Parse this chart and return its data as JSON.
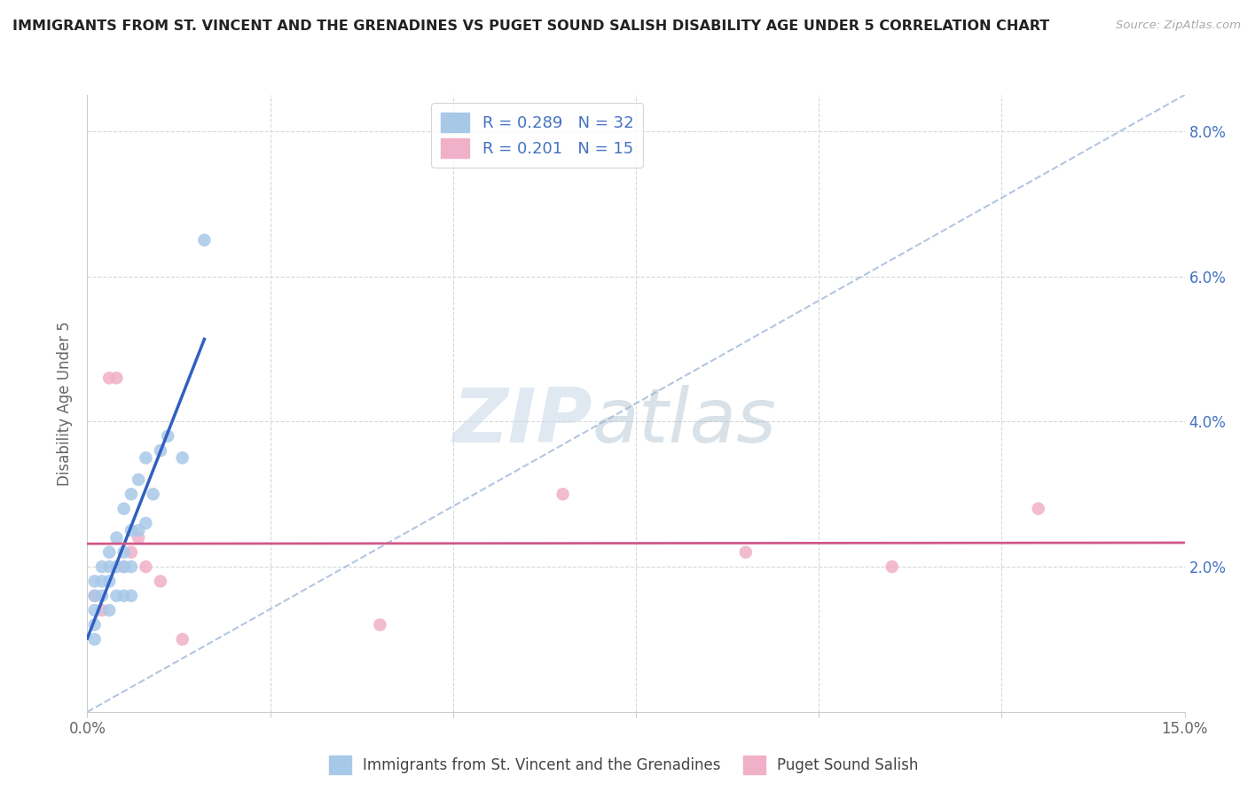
{
  "title": "IMMIGRANTS FROM ST. VINCENT AND THE GRENADINES VS PUGET SOUND SALISH DISABILITY AGE UNDER 5 CORRELATION CHART",
  "source": "Source: ZipAtlas.com",
  "ylabel": "Disability Age Under 5",
  "xlim": [
    0.0,
    0.15
  ],
  "ylim": [
    0.0,
    0.085
  ],
  "yticks": [
    0.0,
    0.02,
    0.04,
    0.06,
    0.08
  ],
  "yticklabels_right": [
    "",
    "2.0%",
    "4.0%",
    "6.0%",
    "8.0%"
  ],
  "blue_R": 0.289,
  "blue_N": 32,
  "pink_R": 0.201,
  "pink_N": 15,
  "blue_color": "#a8c8e8",
  "pink_color": "#f0b0c8",
  "blue_line_color": "#3060c0",
  "pink_line_color": "#d05888",
  "legend_blue_label": "Immigrants from St. Vincent and the Grenadines",
  "legend_pink_label": "Puget Sound Salish",
  "blue_scatter_x": [
    0.001,
    0.001,
    0.001,
    0.001,
    0.002,
    0.002,
    0.002,
    0.003,
    0.003,
    0.003,
    0.003,
    0.004,
    0.004,
    0.004,
    0.005,
    0.005,
    0.005,
    0.005,
    0.006,
    0.006,
    0.006,
    0.006,
    0.007,
    0.007,
    0.008,
    0.008,
    0.009,
    0.01,
    0.011,
    0.013,
    0.016,
    0.001
  ],
  "blue_scatter_y": [
    0.018,
    0.016,
    0.014,
    0.01,
    0.02,
    0.018,
    0.016,
    0.022,
    0.02,
    0.018,
    0.014,
    0.024,
    0.02,
    0.016,
    0.028,
    0.022,
    0.02,
    0.016,
    0.03,
    0.025,
    0.02,
    0.016,
    0.032,
    0.025,
    0.035,
    0.026,
    0.03,
    0.036,
    0.038,
    0.035,
    0.065,
    0.012
  ],
  "pink_scatter_x": [
    0.001,
    0.002,
    0.003,
    0.004,
    0.005,
    0.006,
    0.007,
    0.008,
    0.01,
    0.013,
    0.04,
    0.065,
    0.09,
    0.11,
    0.13
  ],
  "pink_scatter_y": [
    0.016,
    0.014,
    0.046,
    0.046,
    0.02,
    0.022,
    0.024,
    0.02,
    0.018,
    0.01,
    0.012,
    0.03,
    0.022,
    0.02,
    0.028
  ],
  "diag_line_x": [
    0.0,
    0.15
  ],
  "diag_line_y": [
    0.0,
    0.085
  ],
  "watermark_zip": "ZIP",
  "watermark_atlas": "atlas",
  "background_color": "#ffffff",
  "grid_color": "#d8d8d8",
  "title_color": "#222222",
  "label_color": "#666666",
  "tick_label_color": "#4472c4"
}
